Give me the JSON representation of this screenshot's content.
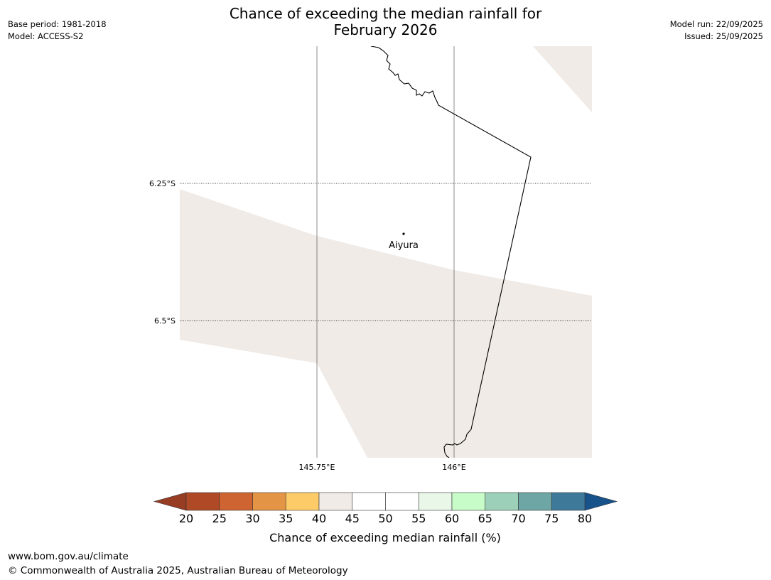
{
  "title": {
    "line1": "Chance of exceeding the median rainfall for",
    "line2": "February 2026"
  },
  "meta_left": {
    "base_period": "Base period: 1981-2018",
    "model": "Model: ACCESS-S2"
  },
  "meta_right": {
    "model_run": "Model run: 22/09/2025",
    "issued": "Issued: 25/09/2025"
  },
  "map": {
    "place": "Aiyura",
    "lat_labels": [
      "6.25°S",
      "6.5°S"
    ],
    "lon_labels": [
      "145.75°E",
      "146°E"
    ],
    "colors": {
      "land_class_40_45": "#f0ebe6",
      "background_class_45_55": "#ffffff",
      "coastline": "#000000",
      "gridline": "#000000"
    }
  },
  "colorbar": {
    "label": "Chance of exceeding median rainfall (%)",
    "ticks": [
      "20",
      "25",
      "30",
      "35",
      "40",
      "45",
      "50",
      "55",
      "60",
      "65",
      "70",
      "75",
      "80"
    ],
    "colors": [
      "#b04a26",
      "#cd6431",
      "#e39545",
      "#fecb69",
      "#f0ebe6",
      "#ffffff",
      "#ffffff",
      "#e9f7e8",
      "#c7fcc8",
      "#9dd0b9",
      "#6ea6a6",
      "#3e799a"
    ],
    "extend_low_color": "#973d24",
    "extend_high_color": "#17528a"
  },
  "footer": {
    "url": "www.bom.gov.au/climate",
    "copyright": "© Commonwealth of Australia 2025, Australian Bureau of Meteorology"
  }
}
